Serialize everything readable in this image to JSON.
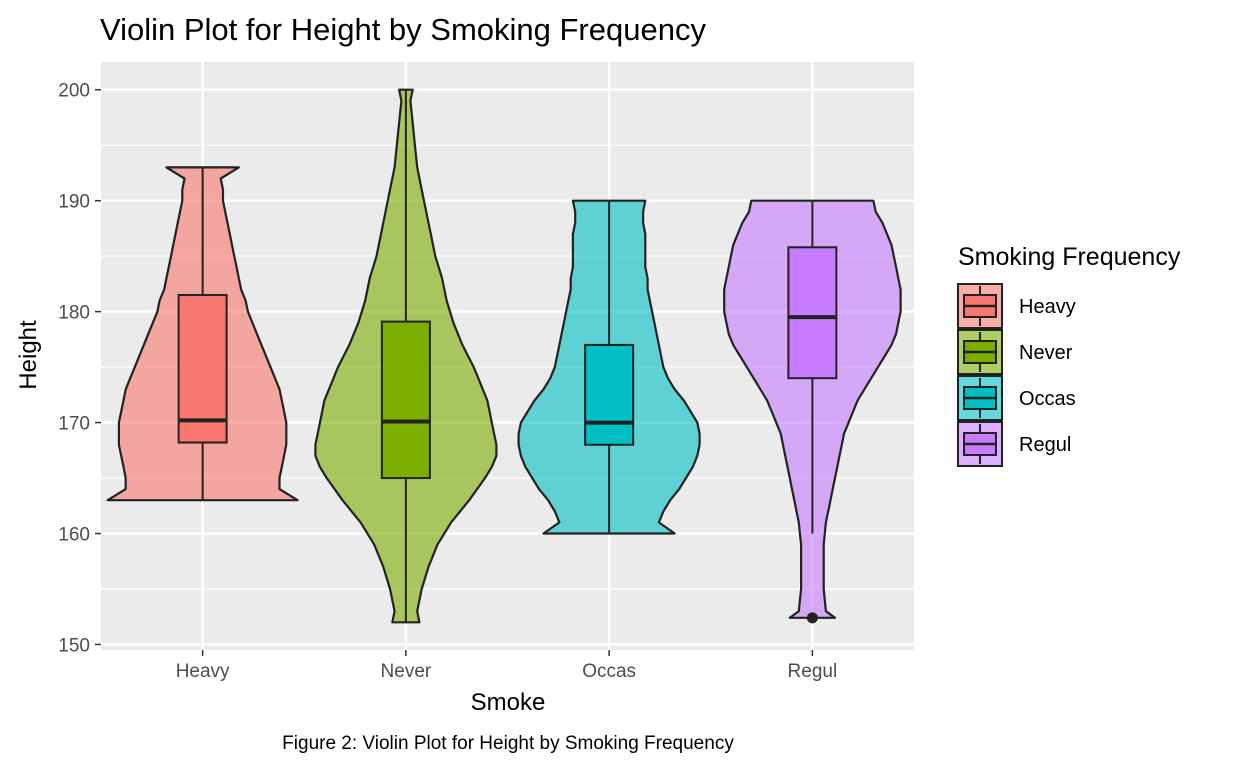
{
  "chart_data": {
    "type": "violin",
    "title": "Violin Plot for Height by Smoking Frequency",
    "xlabel": "Smoke",
    "ylabel": "Height",
    "caption": "Figure 2: Violin Plot for Height by Smoking Frequency",
    "ylim": [
      149.5,
      202.5
    ],
    "yticks": [
      150,
      160,
      170,
      180,
      190,
      200
    ],
    "grid": true,
    "legend": {
      "title": "Smoking Frequency",
      "position": "right",
      "entries": [
        "Heavy",
        "Never",
        "Occas",
        "Regul"
      ]
    },
    "categories": [
      "Heavy",
      "Never",
      "Occas",
      "Regul"
    ],
    "colors": [
      "#F8766D",
      "#7CAE00",
      "#00BFC4",
      "#C77CFF"
    ],
    "violin_alpha": 0.6,
    "boxes": [
      {
        "name": "Heavy",
        "lower_whisker": 163,
        "q1": 168.2,
        "median": 170.2,
        "q3": 181.5,
        "upper_whisker": 193,
        "outliers": []
      },
      {
        "name": "Never",
        "lower_whisker": 152,
        "q1": 165,
        "median": 170.1,
        "q3": 179.1,
        "upper_whisker": 200,
        "outliers": []
      },
      {
        "name": "Occas",
        "lower_whisker": 160,
        "q1": 168,
        "median": 170,
        "q3": 177,
        "upper_whisker": 190,
        "outliers": []
      },
      {
        "name": "Regul",
        "lower_whisker": 160,
        "q1": 174,
        "median": 179.5,
        "q3": 185.8,
        "upper_whisker": 190,
        "outliers": [
          152.4
        ]
      }
    ],
    "violins": [
      {
        "name": "Heavy",
        "min": 163,
        "max": 193,
        "density": [
          [
            163,
            0.42
          ],
          [
            164,
            0.34
          ],
          [
            165,
            0.34
          ],
          [
            166,
            0.35
          ],
          [
            167,
            0.36
          ],
          [
            168,
            0.37
          ],
          [
            169,
            0.37
          ],
          [
            170,
            0.37
          ],
          [
            171,
            0.36
          ],
          [
            172,
            0.35
          ],
          [
            173,
            0.34
          ],
          [
            174,
            0.32
          ],
          [
            175,
            0.3
          ],
          [
            176,
            0.28
          ],
          [
            177,
            0.26
          ],
          [
            178,
            0.24
          ],
          [
            179,
            0.22
          ],
          [
            180,
            0.2
          ],
          [
            181,
            0.19
          ],
          [
            182,
            0.17
          ],
          [
            183,
            0.16
          ],
          [
            184,
            0.15
          ],
          [
            185,
            0.14
          ],
          [
            186,
            0.13
          ],
          [
            187,
            0.12
          ],
          [
            188,
            0.11
          ],
          [
            189,
            0.1
          ],
          [
            190,
            0.09
          ],
          [
            191,
            0.09
          ],
          [
            192,
            0.08
          ],
          [
            193,
            0.16
          ]
        ]
      },
      {
        "name": "Never",
        "min": 152,
        "max": 200,
        "density": [
          [
            152,
            0.06
          ],
          [
            153,
            0.05
          ],
          [
            155,
            0.07
          ],
          [
            157,
            0.1
          ],
          [
            159,
            0.14
          ],
          [
            161,
            0.2
          ],
          [
            163,
            0.28
          ],
          [
            165,
            0.35
          ],
          [
            166,
            0.38
          ],
          [
            167,
            0.4
          ],
          [
            168,
            0.4
          ],
          [
            169,
            0.39
          ],
          [
            170,
            0.38
          ],
          [
            171,
            0.37
          ],
          [
            172,
            0.36
          ],
          [
            173,
            0.34
          ],
          [
            174,
            0.32
          ],
          [
            175,
            0.3
          ],
          [
            177,
            0.25
          ],
          [
            179,
            0.21
          ],
          [
            181,
            0.18
          ],
          [
            183,
            0.16
          ],
          [
            185,
            0.13
          ],
          [
            187,
            0.11
          ],
          [
            189,
            0.09
          ],
          [
            191,
            0.07
          ],
          [
            193,
            0.05
          ],
          [
            195,
            0.04
          ],
          [
            197,
            0.03
          ],
          [
            199,
            0.02
          ],
          [
            200,
            0.03
          ]
        ]
      },
      {
        "name": "Occas",
        "min": 160,
        "max": 190,
        "density": [
          [
            160,
            0.29
          ],
          [
            161,
            0.22
          ],
          [
            162,
            0.24
          ],
          [
            163,
            0.27
          ],
          [
            164,
            0.31
          ],
          [
            165,
            0.34
          ],
          [
            166,
            0.37
          ],
          [
            167,
            0.39
          ],
          [
            168,
            0.4
          ],
          [
            169,
            0.4
          ],
          [
            170,
            0.39
          ],
          [
            171,
            0.36
          ],
          [
            172,
            0.33
          ],
          [
            173,
            0.29
          ],
          [
            174,
            0.26
          ],
          [
            175,
            0.24
          ],
          [
            176,
            0.23
          ],
          [
            177,
            0.22
          ],
          [
            178,
            0.21
          ],
          [
            179,
            0.2
          ],
          [
            180,
            0.19
          ],
          [
            181,
            0.18
          ],
          [
            182,
            0.17
          ],
          [
            183,
            0.17
          ],
          [
            184,
            0.16
          ],
          [
            185,
            0.16
          ],
          [
            186,
            0.16
          ],
          [
            187,
            0.16
          ],
          [
            188,
            0.15
          ],
          [
            189,
            0.15
          ],
          [
            190,
            0.16
          ]
        ]
      },
      {
        "name": "Regul",
        "min": 152.4,
        "max": 190,
        "density": [
          [
            152.4,
            0.1
          ],
          [
            153,
            0.06
          ],
          [
            154,
            0.055
          ],
          [
            155,
            0.05
          ],
          [
            156,
            0.05
          ],
          [
            157,
            0.05
          ],
          [
            158,
            0.05
          ],
          [
            159,
            0.05
          ],
          [
            160,
            0.055
          ],
          [
            161,
            0.06
          ],
          [
            162,
            0.07
          ],
          [
            163,
            0.08
          ],
          [
            164,
            0.09
          ],
          [
            165,
            0.1
          ],
          [
            166,
            0.11
          ],
          [
            167,
            0.12
          ],
          [
            168,
            0.13
          ],
          [
            169,
            0.14
          ],
          [
            170,
            0.16
          ],
          [
            171,
            0.18
          ],
          [
            172,
            0.2
          ],
          [
            173,
            0.23
          ],
          [
            174,
            0.26
          ],
          [
            175,
            0.29
          ],
          [
            176,
            0.32
          ],
          [
            177,
            0.35
          ],
          [
            178,
            0.37
          ],
          [
            179,
            0.38
          ],
          [
            180,
            0.39
          ],
          [
            181,
            0.39
          ],
          [
            182,
            0.39
          ],
          [
            183,
            0.38
          ],
          [
            184,
            0.37
          ],
          [
            185,
            0.36
          ],
          [
            186,
            0.35
          ],
          [
            187,
            0.33
          ],
          [
            188,
            0.31
          ],
          [
            189,
            0.28
          ],
          [
            190,
            0.27
          ]
        ]
      }
    ]
  }
}
